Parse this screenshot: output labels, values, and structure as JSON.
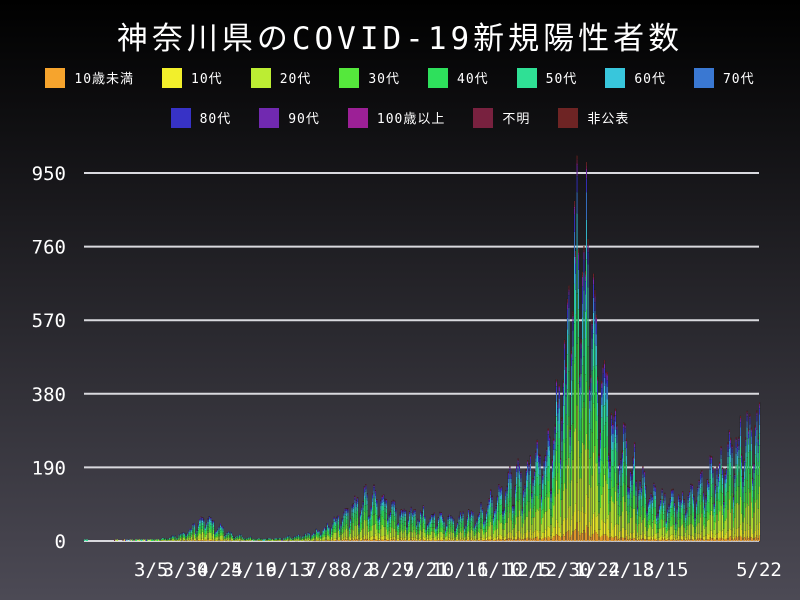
{
  "colors": {
    "background_top": "#000000",
    "background_bottom": "#4c4a55",
    "grid_line": "#d9d9de",
    "text": "#ffffff"
  },
  "chart_data": {
    "type": "bar",
    "stacked": true,
    "title": "神奈川県のCOVID-19新規陽性者数",
    "legend_position": "top",
    "grid": true,
    "xlabel": "",
    "ylabel": "",
    "y_ticks": [
      0,
      190,
      380,
      570,
      760,
      950
    ],
    "ylim": [
      0,
      1000
    ],
    "x_start_date": "2020-01-16",
    "x_end_date": "2021-05-22",
    "num_days": 493,
    "x_tick_labels": [
      {
        "label": "3/5",
        "day": 49
      },
      {
        "label": "3/30",
        "day": 74
      },
      {
        "label": "4/24",
        "day": 99
      },
      {
        "label": "5/19",
        "day": 124
      },
      {
        "label": "6/13",
        "day": 149
      },
      {
        "label": "7/8",
        "day": 174
      },
      {
        "label": "8/2",
        "day": 199
      },
      {
        "label": "8/27",
        "day": 224
      },
      {
        "label": "9/21",
        "day": 249
      },
      {
        "label": "10/16",
        "day": 274
      },
      {
        "label": "11/10",
        "day": 299
      },
      {
        "label": "12/5",
        "day": 324
      },
      {
        "label": "12/30",
        "day": 349
      },
      {
        "label": "1/24",
        "day": 374
      },
      {
        "label": "2/18",
        "day": 399
      },
      {
        "label": "3/15",
        "day": 424
      },
      {
        "label": "5/22",
        "day": 492
      }
    ],
    "series": [
      {
        "name": "10歳未満",
        "color": "#f6a42d",
        "share_estimate": 0.035
      },
      {
        "name": "10代",
        "color": "#f2ef2b",
        "share_estimate": 0.08
      },
      {
        "name": "20代",
        "color": "#bced33",
        "share_estimate": 0.215
      },
      {
        "name": "30代",
        "color": "#55e83c",
        "share_estimate": 0.165
      },
      {
        "name": "40代",
        "color": "#2ee05c",
        "share_estimate": 0.15
      },
      {
        "name": "50代",
        "color": "#2fe095",
        "share_estimate": 0.12
      },
      {
        "name": "60代",
        "color": "#38c6dc",
        "share_estimate": 0.085
      },
      {
        "name": "70代",
        "color": "#3a78d2",
        "share_estimate": 0.06
      },
      {
        "name": "80代",
        "color": "#3732c6",
        "share_estimate": 0.045
      },
      {
        "name": "90代",
        "color": "#7129b0",
        "share_estimate": 0.023
      },
      {
        "name": "100歳以上",
        "color": "#9c2096",
        "share_estimate": 0.004
      },
      {
        "name": "不明",
        "color": "#78213f",
        "share_estimate": 0.008
      },
      {
        "name": "非公表",
        "color": "#6e2424",
        "share_estimate": 0.01
      }
    ],
    "legend_rows": [
      8,
      5
    ],
    "daily_totals_envelope": [
      [
        0,
        1
      ],
      [
        4,
        0
      ],
      [
        28,
        0.6
      ],
      [
        40,
        1.5
      ],
      [
        49,
        3
      ],
      [
        60,
        8
      ],
      [
        72,
        20
      ],
      [
        82,
        45
      ],
      [
        88,
        62
      ],
      [
        96,
        42
      ],
      [
        106,
        20
      ],
      [
        118,
        9
      ],
      [
        132,
        6
      ],
      [
        146,
        9
      ],
      [
        160,
        16
      ],
      [
        172,
        28
      ],
      [
        184,
        55
      ],
      [
        196,
        90
      ],
      [
        208,
        118
      ],
      [
        222,
        92
      ],
      [
        240,
        74
      ],
      [
        258,
        60
      ],
      [
        272,
        62
      ],
      [
        286,
        72
      ],
      [
        300,
        105
      ],
      [
        314,
        160
      ],
      [
        328,
        205
      ],
      [
        340,
        260
      ],
      [
        347,
        400
      ],
      [
        352,
        500
      ],
      [
        356,
        700
      ],
      [
        359,
        870
      ],
      [
        362,
        800
      ],
      [
        366,
        700
      ],
      [
        371,
        560
      ],
      [
        377,
        430
      ],
      [
        384,
        330
      ],
      [
        392,
        250
      ],
      [
        402,
        180
      ],
      [
        412,
        130
      ],
      [
        422,
        105
      ],
      [
        432,
        110
      ],
      [
        442,
        125
      ],
      [
        452,
        150
      ],
      [
        460,
        185
      ],
      [
        468,
        225
      ],
      [
        476,
        250
      ],
      [
        483,
        275
      ],
      [
        489,
        290
      ],
      [
        492,
        265
      ]
    ],
    "weekly_pattern_mon_to_sun": [
      0.55,
      0.68,
      0.92,
      1.06,
      1.12,
      1.22,
      1.02
    ],
    "peak_value_estimate": 985
  }
}
